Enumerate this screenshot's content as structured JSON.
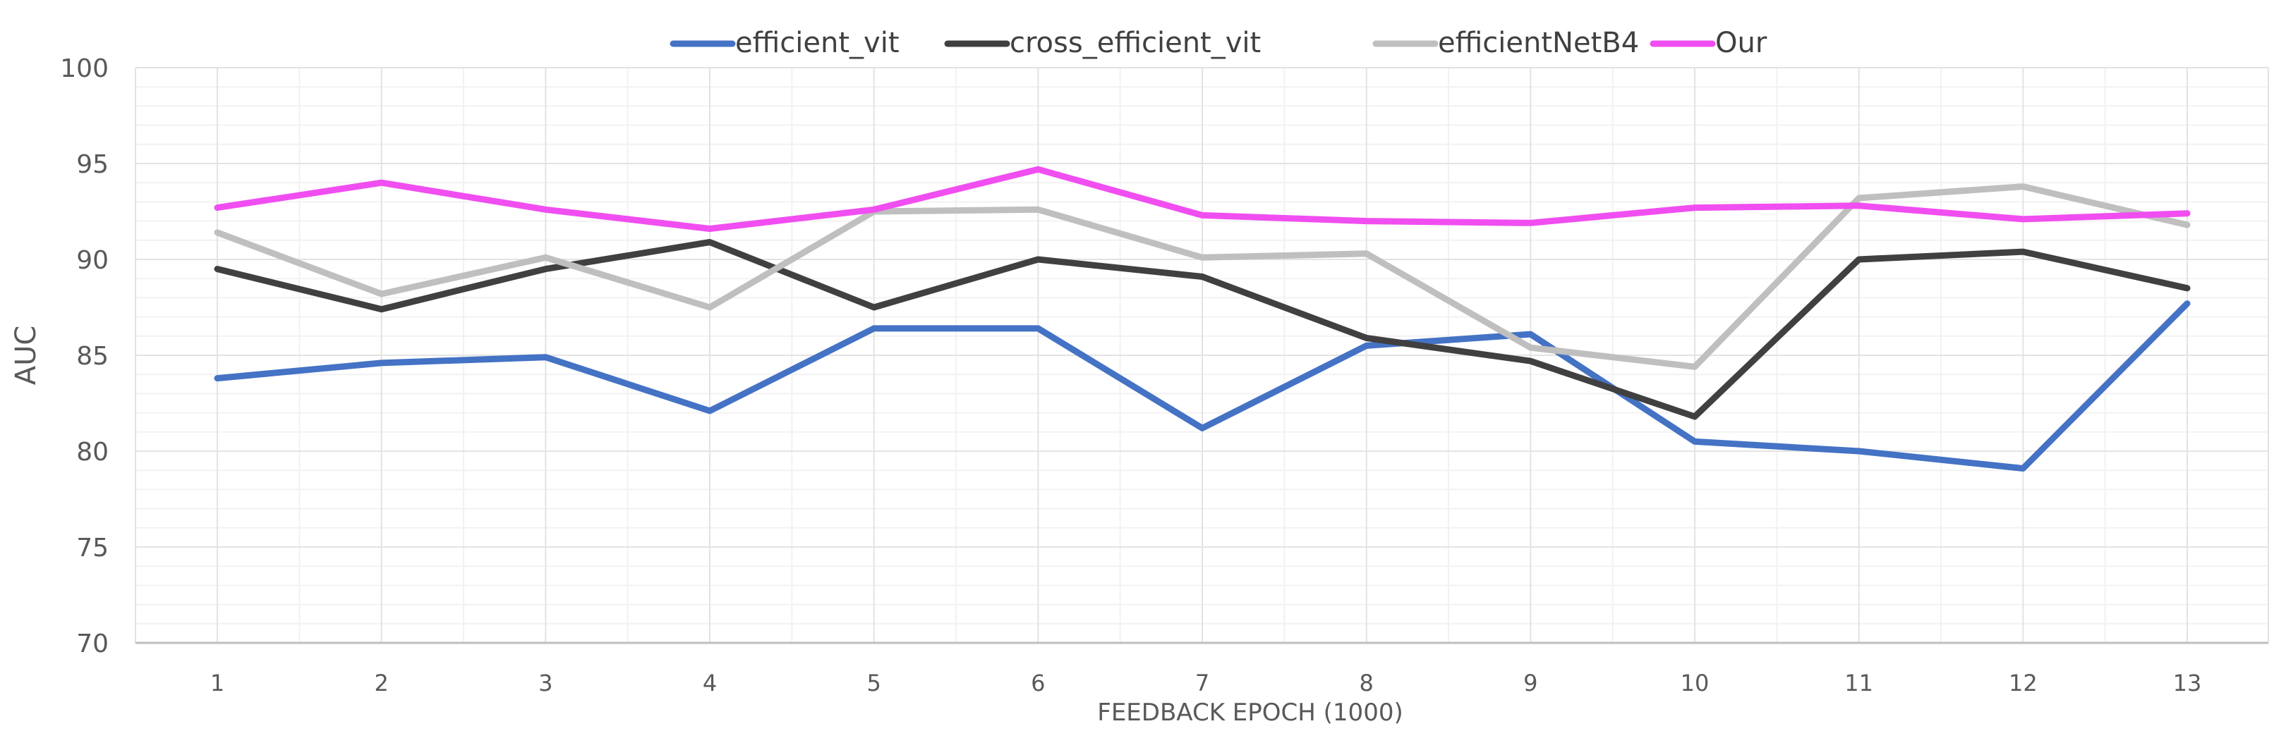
{
  "chart_data": {
    "type": "line",
    "title": "",
    "xlabel": "FEEDBACK EPOCH (1000)",
    "ylabel": "AUC",
    "ylim": [
      70,
      100
    ],
    "yticks": [
      70,
      75,
      80,
      85,
      90,
      95,
      100
    ],
    "categories": [
      "1",
      "2",
      "3",
      "4",
      "5",
      "6",
      "7",
      "8",
      "9",
      "10",
      "11",
      "12",
      "13"
    ],
    "grid": true,
    "legend_position": "top-center",
    "series": [
      {
        "name": "efficient_vit",
        "color": "#4472C4",
        "values": [
          83.8,
          84.6,
          84.9,
          82.1,
          86.4,
          86.4,
          81.2,
          85.5,
          86.1,
          80.5,
          80.0,
          79.1,
          87.7
        ]
      },
      {
        "name": "cross_efficient_vit",
        "color": "#404040",
        "values": [
          89.5,
          87.4,
          89.5,
          90.9,
          87.5,
          90.0,
          89.1,
          85.9,
          84.7,
          81.8,
          90.0,
          90.4,
          88.5
        ]
      },
      {
        "name": "efficientNetB4",
        "color": "#BFBFBF",
        "values": [
          91.4,
          88.2,
          90.1,
          87.5,
          92.5,
          92.6,
          90.1,
          90.3,
          85.4,
          84.4,
          93.2,
          93.8,
          91.8
        ]
      },
      {
        "name": "Our",
        "color": "#F04EF0",
        "values": [
          92.7,
          94.0,
          92.6,
          91.6,
          92.6,
          94.7,
          92.3,
          92.0,
          91.9,
          92.7,
          92.8,
          92.1,
          92.4
        ]
      }
    ]
  }
}
